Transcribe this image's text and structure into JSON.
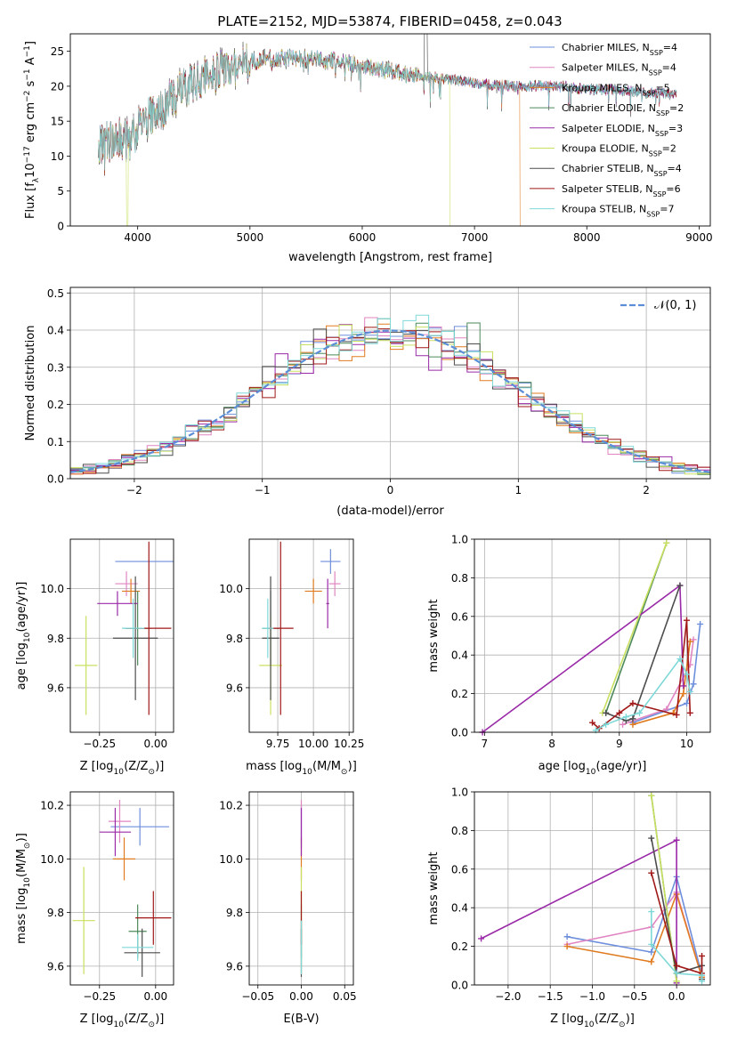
{
  "figure": {
    "title": "PLATE=2152, MJD=53874, FIBERID=0458, z=0.043"
  },
  "colors": {
    "Chabrier MILES": "#6e8fdc",
    "Salpeter MILES": "#e085c2",
    "Kroupa MILES": "#e07b20",
    "Chabrier ELODIE": "#4d8a5a",
    "Salpeter ELODIE": "#9a2aa8",
    "Kroupa ELODIE": "#c8e060",
    "Chabrier STELIB": "#4d4d4d",
    "Salpeter STELIB": "#a01818",
    "Kroupa STELIB": "#7fd8d8",
    "gaussian": "#5b8ed6"
  },
  "chart_data": [
    {
      "id": "spectrum",
      "type": "line",
      "title": "PLATE=2152, MJD=53874, FIBERID=0458, z=0.043",
      "xlabel": "wavelength [Angstrom, rest frame]",
      "ylabel_parts": [
        "Flux [f",
        "λ",
        "10",
        "−17",
        " erg cm",
        "−2",
        " s",
        "−1",
        " A",
        "−1",
        "]"
      ],
      "xlim": [
        3400,
        9100
      ],
      "ylim": [
        0,
        27.5
      ],
      "xticks": [
        4000,
        5000,
        6000,
        7000,
        8000,
        9000
      ],
      "yticks": [
        0,
        5,
        10,
        15,
        20,
        25
      ],
      "grid": false,
      "legend_position": "top-right",
      "legend": [
        {
          "name": "Chabrier MILES",
          "nssp": "4"
        },
        {
          "name": "Salpeter MILES",
          "nssp": "4"
        },
        {
          "name": "Kroupa MILES",
          "nssp": "5"
        },
        {
          "name": "Chabrier ELODIE",
          "nssp": "2"
        },
        {
          "name": "Salpeter ELODIE",
          "nssp": "3"
        },
        {
          "name": "Kroupa ELODIE",
          "nssp": "2"
        },
        {
          "name": "Chabrier STELIB",
          "nssp": "4"
        },
        {
          "name": "Salpeter STELIB",
          "nssp": "6"
        },
        {
          "name": "Kroupa STELIB",
          "nssp": "7"
        }
      ],
      "legend_n_label": "N",
      "legend_n_sub": "SSP",
      "continuum": {
        "x": [
          3650,
          3800,
          3950,
          4000,
          4100,
          4200,
          4300,
          4400,
          4500,
          4600,
          4700,
          4800,
          4900,
          5000,
          5200,
          5500,
          5800,
          6000,
          6300,
          6500,
          6800,
          7000,
          7300,
          7500,
          7800,
          8000,
          8300,
          8500,
          8800
        ],
        "y": [
          11.5,
          12.5,
          12.5,
          14,
          15.5,
          16.5,
          18,
          19.5,
          20.5,
          21.5,
          22,
          22.5,
          23,
          23.5,
          24,
          24,
          23.5,
          23,
          22,
          21.5,
          21,
          20.5,
          20,
          20,
          20,
          19.5,
          19.5,
          19,
          19
        ]
      },
      "data_max_x": 8800
    },
    {
      "id": "residuals",
      "type": "step",
      "xlabel": "(data-model)/error",
      "ylabel": "Normed distribution",
      "xlim": [
        -2.5,
        2.5
      ],
      "ylim": [
        0,
        0.515
      ],
      "xticks": [
        -2,
        -1,
        0,
        1,
        2
      ],
      "xticklabels": [
        "−2",
        "−1",
        "0",
        "1",
        "2"
      ],
      "yticks": [
        0,
        0.1,
        0.2,
        0.3,
        0.4,
        0.5
      ],
      "yticklabels": [
        "0.0",
        "0.1",
        "0.2",
        "0.3",
        "0.4",
        "0.5"
      ],
      "grid": true,
      "legend_position": "top-right",
      "legend_label_prefix": "𝒩",
      "legend_label": "(0, 1)",
      "bin_start": -2.5,
      "bin_width": 0.1
    },
    {
      "id": "age_vs_Z",
      "type": "errorbar",
      "xlabel_pre": "Z [log",
      "xlabel_sub": "10",
      "xlabel_mid": "(Z/Z",
      "xlabel_sub2": "⊙",
      "xlabel_post": ")]",
      "ylabel_pre": "age  [log",
      "ylabel_sub": "10",
      "ylabel_post": "(age/yr)]",
      "xlim": [
        -0.38,
        0.08
      ],
      "ylim": [
        9.42,
        10.2
      ],
      "xticks": [
        -0.25,
        0.0
      ],
      "xticklabels": [
        "−0.25",
        "0.00"
      ],
      "yticks": [
        9.6,
        9.8,
        10.0
      ],
      "yticklabels": [
        "9.6",
        "9.8",
        "10.0"
      ],
      "points": [
        {
          "model": "Chabrier MILES",
          "x": -0.05,
          "xerr": 0.13,
          "y": 10.11,
          "yerr": 0.0
        },
        {
          "model": "Salpeter MILES",
          "x": -0.13,
          "xerr": 0.05,
          "y": 10.02,
          "yerr": 0.05
        },
        {
          "model": "Kroupa MILES",
          "x": -0.11,
          "xerr": 0.04,
          "y": 9.99,
          "yerr": 0.05
        },
        {
          "model": "Chabrier ELODIE",
          "x": -0.08,
          "xerr": 0.06,
          "y": 9.84,
          "yerr": 0.15
        },
        {
          "model": "Salpeter ELODIE",
          "x": -0.17,
          "xerr": 0.09,
          "y": 9.94,
          "yerr": 0.05
        },
        {
          "model": "Kroupa ELODIE",
          "x": -0.31,
          "xerr": 0.05,
          "y": 9.69,
          "yerr": 0.2
        },
        {
          "model": "Chabrier STELIB",
          "x": -0.09,
          "xerr": 0.1,
          "y": 9.8,
          "yerr": 0.25
        },
        {
          "model": "Salpeter STELIB",
          "x": -0.03,
          "xerr": 0.1,
          "y": 9.84,
          "yerr": 0.35
        },
        {
          "model": "Kroupa STELIB",
          "x": -0.1,
          "xerr": 0.05,
          "y": 9.84,
          "yerr": 0.12
        }
      ]
    },
    {
      "id": "age_vs_mass",
      "type": "errorbar",
      "xlabel_pre": "mass [log",
      "xlabel_sub": "10",
      "xlabel_mid": "(M/M",
      "xlabel_sub2": "⊙",
      "xlabel_post": ")]",
      "xlim": [
        9.55,
        10.28
      ],
      "ylim": [
        9.42,
        10.2
      ],
      "xticks": [
        9.75,
        10.0,
        10.25
      ],
      "xticklabels": [
        "9.75",
        "10.00",
        "10.25"
      ],
      "yticks": [
        9.6,
        9.8,
        10.0
      ],
      "yticklabels": [
        "9.6",
        "9.8",
        "10.0"
      ],
      "points": [
        {
          "model": "Chabrier MILES",
          "x": 10.12,
          "xerr": 0.07,
          "y": 10.11,
          "yerr": 0.05
        },
        {
          "model": "Salpeter MILES",
          "x": 10.15,
          "xerr": 0.04,
          "y": 10.02,
          "yerr": 0.05
        },
        {
          "model": "Kroupa MILES",
          "x": 10.0,
          "xerr": 0.06,
          "y": 9.99,
          "yerr": 0.05
        },
        {
          "model": "Chabrier ELODIE",
          "x": 9.7,
          "xerr": 0.06,
          "y": 9.84,
          "yerr": 0.15
        },
        {
          "model": "Salpeter ELODIE",
          "x": 10.1,
          "xerr": 0.01,
          "y": 9.94,
          "yerr": 0.1
        },
        {
          "model": "Kroupa ELODIE",
          "x": 9.7,
          "xerr": 0.08,
          "y": 9.69,
          "yerr": 0.2
        },
        {
          "model": "Chabrier STELIB",
          "x": 9.7,
          "xerr": 0.06,
          "y": 9.8,
          "yerr": 0.25
        },
        {
          "model": "Salpeter STELIB",
          "x": 9.77,
          "xerr": 0.09,
          "y": 9.84,
          "yerr": 0.35
        },
        {
          "model": "Kroupa STELIB",
          "x": 9.68,
          "xerr": 0.04,
          "y": 9.84,
          "yerr": 0.12
        }
      ]
    },
    {
      "id": "weight_vs_age",
      "type": "line",
      "xlabel_pre": "age  [log",
      "xlabel_sub": "10",
      "xlabel_post": "(age/yr)]",
      "ylabel": "mass weight",
      "xlim": [
        6.85,
        10.35
      ],
      "ylim": [
        0,
        1.0
      ],
      "xticks": [
        7,
        8,
        9,
        10
      ],
      "yticks": [
        0,
        0.2,
        0.4,
        0.6,
        0.8,
        1.0
      ],
      "yticklabels": [
        "0.0",
        "0.2",
        "0.4",
        "0.6",
        "0.8",
        "1.0"
      ],
      "grid": true,
      "series": [
        {
          "model": "Chabrier MILES",
          "x": [
            9.2,
            10.0,
            10.1,
            10.2
          ],
          "y": [
            0.05,
            0.15,
            0.25,
            0.56
          ]
        },
        {
          "model": "Salpeter MILES",
          "x": [
            9.05,
            9.7,
            10.05,
            10.1
          ],
          "y": [
            0.04,
            0.12,
            0.35,
            0.48
          ]
        },
        {
          "model": "Kroupa MILES",
          "x": [
            9.2,
            9.8,
            9.95,
            10.05
          ],
          "y": [
            0.04,
            0.1,
            0.2,
            0.47
          ]
        },
        {
          "model": "Chabrier ELODIE",
          "x": [
            8.8,
            9.7
          ],
          "y": [
            0.1,
            0.98
          ]
        },
        {
          "model": "Salpeter ELODIE",
          "x": [
            6.97,
            9.9,
            9.95
          ],
          "y": [
            0.0,
            0.76,
            0.24
          ]
        },
        {
          "model": "Kroupa ELODIE",
          "x": [
            8.75,
            9.7
          ],
          "y": [
            0.1,
            0.98
          ]
        },
        {
          "model": "Chabrier STELIB",
          "x": [
            8.8,
            9.1,
            9.2,
            9.9
          ],
          "y": [
            0.1,
            0.06,
            0.07,
            0.76
          ]
        },
        {
          "model": "Salpeter STELIB",
          "x": [
            8.6,
            8.7,
            9.0,
            9.2,
            9.85,
            10.0,
            10.05
          ],
          "y": [
            0.05,
            0.02,
            0.1,
            0.15,
            0.09,
            0.58,
            0.1
          ]
        },
        {
          "model": "Kroupa STELIB",
          "x": [
            8.65,
            8.8,
            9.1,
            9.3,
            9.9,
            10.0,
            10.05
          ],
          "y": [
            0.01,
            0.04,
            0.08,
            0.1,
            0.38,
            0.3,
            0.21
          ]
        }
      ]
    },
    {
      "id": "mass_vs_Z",
      "type": "errorbar",
      "xlabel_pre": "Z [log",
      "xlabel_sub": "10",
      "xlabel_mid": "(Z/Z",
      "xlabel_sub2": "⊙",
      "xlabel_post": ")]",
      "ylabel_pre": "mass [log",
      "ylabel_sub": "10",
      "ylabel_mid": "(M/M",
      "ylabel_sub2": "⊙",
      "ylabel_post": ")]",
      "xlim": [
        -0.38,
        0.08
      ],
      "ylim": [
        9.53,
        10.25
      ],
      "xticks": [
        -0.25,
        0.0
      ],
      "xticklabels": [
        "−0.25",
        "0.00"
      ],
      "yticks": [
        9.6,
        9.8,
        10.0,
        10.2
      ],
      "yticklabels": [
        "9.6",
        "9.8",
        "10.0",
        "10.2"
      ],
      "points": [
        {
          "model": "Chabrier MILES",
          "x": -0.07,
          "xerr": 0.13,
          "y": 10.12,
          "yerr": 0.07
        },
        {
          "model": "Salpeter MILES",
          "x": -0.16,
          "xerr": 0.05,
          "y": 10.14,
          "yerr": 0.08
        },
        {
          "model": "Kroupa MILES",
          "x": -0.14,
          "xerr": 0.05,
          "y": 10.0,
          "yerr": 0.08
        },
        {
          "model": "Chabrier ELODIE",
          "x": -0.08,
          "xerr": 0.04,
          "y": 9.73,
          "yerr": 0.1
        },
        {
          "model": "Salpeter ELODIE",
          "x": -0.18,
          "xerr": 0.07,
          "y": 10.1,
          "yerr": 0.09
        },
        {
          "model": "Kroupa ELODIE",
          "x": -0.32,
          "xerr": 0.05,
          "y": 9.77,
          "yerr": 0.2
        },
        {
          "model": "Chabrier STELIB",
          "x": -0.06,
          "xerr": 0.08,
          "y": 9.65,
          "yerr": 0.09
        },
        {
          "model": "Salpeter STELIB",
          "x": -0.01,
          "xerr": 0.08,
          "y": 9.78,
          "yerr": 0.1
        },
        {
          "model": "Kroupa STELIB",
          "x": -0.08,
          "xerr": 0.07,
          "y": 9.67,
          "yerr": 0.05
        }
      ]
    },
    {
      "id": "mass_vs_ebv",
      "type": "errorbar",
      "xlabel": "E(B-V)",
      "xlim": [
        -0.06,
        0.06
      ],
      "ylim": [
        9.53,
        10.25
      ],
      "xticks": [
        -0.05,
        0.0,
        0.05
      ],
      "xticklabels": [
        "−0.05",
        "0.00",
        "0.05"
      ],
      "yticks": [
        9.6,
        9.8,
        10.0,
        10.2
      ],
      "yticklabels": [
        "9.6",
        "9.8",
        "10.0",
        "10.2"
      ],
      "points": [
        {
          "model": "Chabrier MILES",
          "x": 0,
          "xerr": 0,
          "y": 10.12,
          "yerr": 0.08
        },
        {
          "model": "Salpeter MILES",
          "x": 0,
          "xerr": 0,
          "y": 10.14,
          "yerr": 0.08
        },
        {
          "model": "Kroupa MILES",
          "x": 0,
          "xerr": 0,
          "y": 10.0,
          "yerr": 0.08
        },
        {
          "model": "Chabrier ELODIE",
          "x": 0,
          "xerr": 0,
          "y": 9.73,
          "yerr": 0.1
        },
        {
          "model": "Salpeter ELODIE",
          "x": 0,
          "xerr": 0,
          "y": 10.1,
          "yerr": 0.09
        },
        {
          "model": "Kroupa ELODIE",
          "x": 0,
          "xerr": 0,
          "y": 9.77,
          "yerr": 0.2
        },
        {
          "model": "Chabrier STELIB",
          "x": 0,
          "xerr": 0,
          "y": 9.65,
          "yerr": 0.09
        },
        {
          "model": "Salpeter STELIB",
          "x": 0,
          "xerr": 0,
          "y": 9.78,
          "yerr": 0.1
        },
        {
          "model": "Kroupa STELIB",
          "x": 0,
          "xerr": 0,
          "y": 9.67,
          "yerr": 0.1
        }
      ]
    },
    {
      "id": "weight_vs_Z",
      "type": "line",
      "xlabel_pre": "Z [log",
      "xlabel_sub": "10",
      "xlabel_mid": "(Z/Z",
      "xlabel_sub2": "⊙",
      "xlabel_post": ")]",
      "ylabel": "mass weight",
      "xlim": [
        -2.4,
        0.4
      ],
      "ylim": [
        0,
        1.0
      ],
      "xticks": [
        -2.0,
        -1.5,
        -1.0,
        -0.5,
        0.0
      ],
      "xticklabels": [
        "−2.0",
        "−1.5",
        "−1.0",
        "−0.5",
        "0.0"
      ],
      "yticks": [
        0,
        0.2,
        0.4,
        0.6,
        0.8,
        1.0
      ],
      "yticklabels": [
        "0.0",
        "0.2",
        "0.4",
        "0.6",
        "0.8",
        "1.0"
      ],
      "grid": true,
      "series": [
        {
          "model": "Chabrier MILES",
          "x": [
            -1.3,
            -0.3,
            0.0,
            0.3
          ],
          "y": [
            0.25,
            0.17,
            0.56,
            0.05
          ]
        },
        {
          "model": "Salpeter MILES",
          "x": [
            -1.3,
            -0.3,
            0.0,
            0.3
          ],
          "y": [
            0.21,
            0.3,
            0.48,
            0.04
          ]
        },
        {
          "model": "Kroupa MILES",
          "x": [
            -1.3,
            -0.3,
            0.0,
            0.3
          ],
          "y": [
            0.2,
            0.12,
            0.47,
            0.04
          ]
        },
        {
          "model": "Chabrier ELODIE",
          "x": [
            -0.3,
            0.0
          ],
          "y": [
            0.98,
            0.02
          ]
        },
        {
          "model": "Salpeter ELODIE",
          "x": [
            -2.32,
            0.0,
            0.0
          ],
          "y": [
            0.24,
            0.75,
            0.01
          ]
        },
        {
          "model": "Kroupa ELODIE",
          "x": [
            -0.3,
            0.0
          ],
          "y": [
            0.98,
            0.02
          ]
        },
        {
          "model": "Chabrier STELIB",
          "x": [
            -0.3,
            0.0,
            0.3,
            0.3
          ],
          "y": [
            0.76,
            0.06,
            0.1,
            0.03
          ]
        },
        {
          "model": "Salpeter STELIB",
          "x": [
            -0.3,
            0.0,
            0.3,
            0.3
          ],
          "y": [
            0.58,
            0.1,
            0.06,
            0.15
          ]
        },
        {
          "model": "Kroupa STELIB",
          "x": [
            -0.3,
            -0.3,
            0.0,
            0.3,
            0.3
          ],
          "y": [
            0.38,
            0.21,
            0.06,
            0.05,
            0.02
          ]
        }
      ]
    }
  ]
}
